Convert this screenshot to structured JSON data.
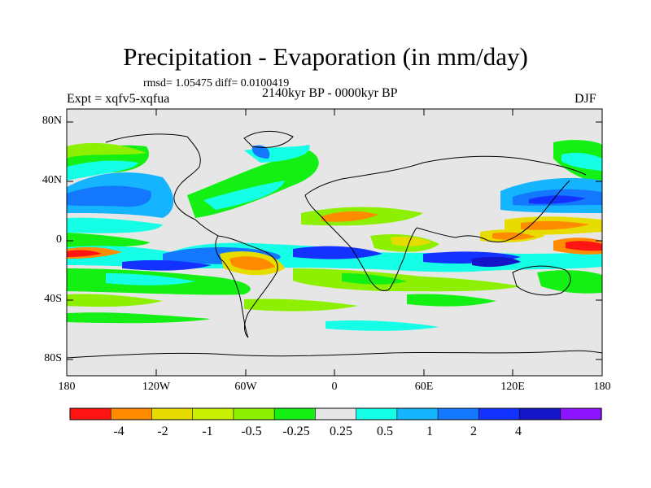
{
  "title": "Precipitation - Evaporation (in mm/day)",
  "rmsd_line": "rmsd= 1.05475 diff= 0.0100419",
  "experiment": "Expt = xqfv5-xqfua",
  "period": "2140kyr BP - 0000kyr BP",
  "season": "DJF",
  "latitude_labels": [
    "80N",
    "40N",
    "0",
    "40S",
    "80S"
  ],
  "longitude_labels": [
    "180",
    "120W",
    "60W",
    "0",
    "60E",
    "120E",
    "180"
  ],
  "colorbar": {
    "colors": [
      "#ff1414",
      "#ff8c00",
      "#e6dc00",
      "#c8f000",
      "#8cf000",
      "#14f014",
      "#e6e6e6",
      "#14ffe6",
      "#14b4ff",
      "#1478ff",
      "#1432ff",
      "#1414c8",
      "#8c14ff"
    ],
    "labels": [
      "-4",
      "-2",
      "-1",
      "-0.5",
      "-0.25",
      "0.25",
      "0.5",
      "1",
      "2",
      "4"
    ]
  },
  "colors": {
    "background": "#e6e6e6",
    "coastline": "#000000"
  }
}
